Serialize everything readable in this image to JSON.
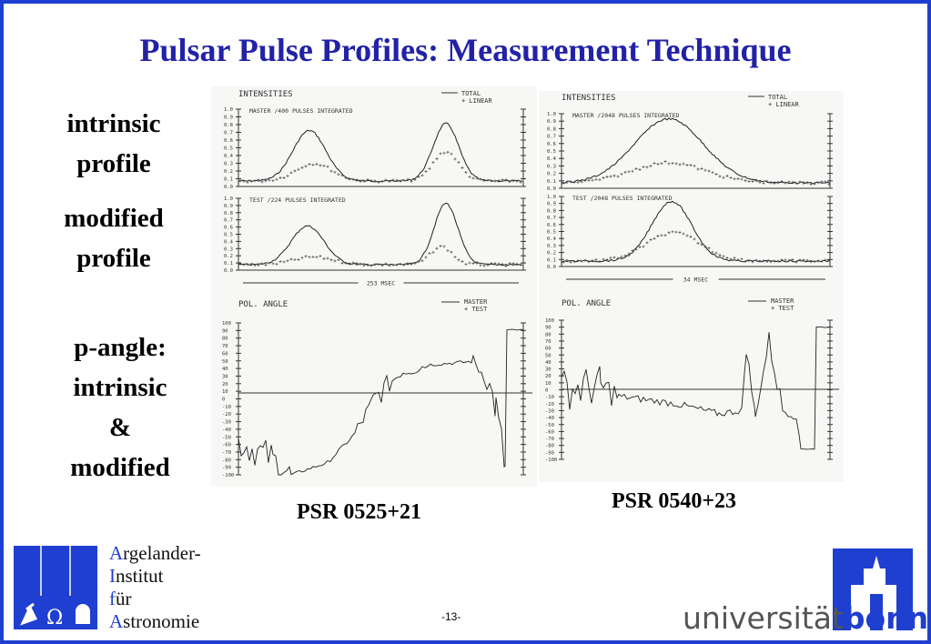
{
  "title": "Pulsar Pulse Profiles: Measurement Technique",
  "row_labels": [
    [
      "intrinsic",
      "profile"
    ],
    [
      "modified",
      "profile"
    ],
    [
      "p-angle:",
      "intrinsic",
      "&",
      "modified"
    ]
  ],
  "figures": [
    {
      "caption": "PSR 0525+21",
      "intensity_title": "INTENSITIES",
      "intensity_legend": [
        "TOTAL",
        "+ LINEAR"
      ],
      "panels": [
        "MASTER   /400 PULSES INTEGRATED",
        "TEST   /224 PULSES INTEGRATED"
      ],
      "scale": "253 MSEC",
      "angle_title": "POL. ANGLE",
      "angle_legend": [
        "MASTER",
        "+ TEST"
      ],
      "intensity_ticks": [
        "1.0",
        "0.9",
        "0.8",
        "0.7",
        "0.6",
        "0.5",
        "0.4",
        "0.3",
        "0.2",
        "0.1",
        "0.0"
      ],
      "angle_ticks": [
        "100",
        "90",
        "80",
        "70",
        "60",
        "50",
        "40",
        "30",
        "20",
        "10",
        "0",
        "-10",
        "-20",
        "-30",
        "-40",
        "-50",
        "-60",
        "-70",
        "-80",
        "-90",
        "-100"
      ]
    },
    {
      "caption": "PSR 0540+23",
      "intensity_title": "INTENSITIES",
      "intensity_legend": [
        "TOTAL",
        "+ LINEAR"
      ],
      "panels": [
        "MASTER   /2048 PULSES INTEGRATED",
        "TEST   /2048 PULSES INTEGRATED"
      ],
      "scale": "34 MSEC",
      "angle_title": "POL. ANGLE",
      "angle_legend": [
        "MASTER",
        "+ TEST"
      ],
      "intensity_ticks": [
        "1.0",
        "0.9",
        "0.8",
        "0.7",
        "0.6",
        "0.5",
        "0.4",
        "0.3",
        "0.2",
        "0.1",
        "0.0"
      ],
      "angle_ticks": [
        "100",
        "90",
        "80",
        "70",
        "60",
        "50",
        "40",
        "30",
        "20",
        "10",
        "0",
        "-10",
        "-20",
        "-30",
        "-40",
        "-50",
        "-60",
        "-70",
        "-80",
        "-90",
        "-100"
      ]
    }
  ],
  "institute": [
    "Argelander-",
    "Institut",
    "für",
    "Astronomie"
  ],
  "page_number": "-13-",
  "university": [
    "universität",
    "bonn"
  ]
}
